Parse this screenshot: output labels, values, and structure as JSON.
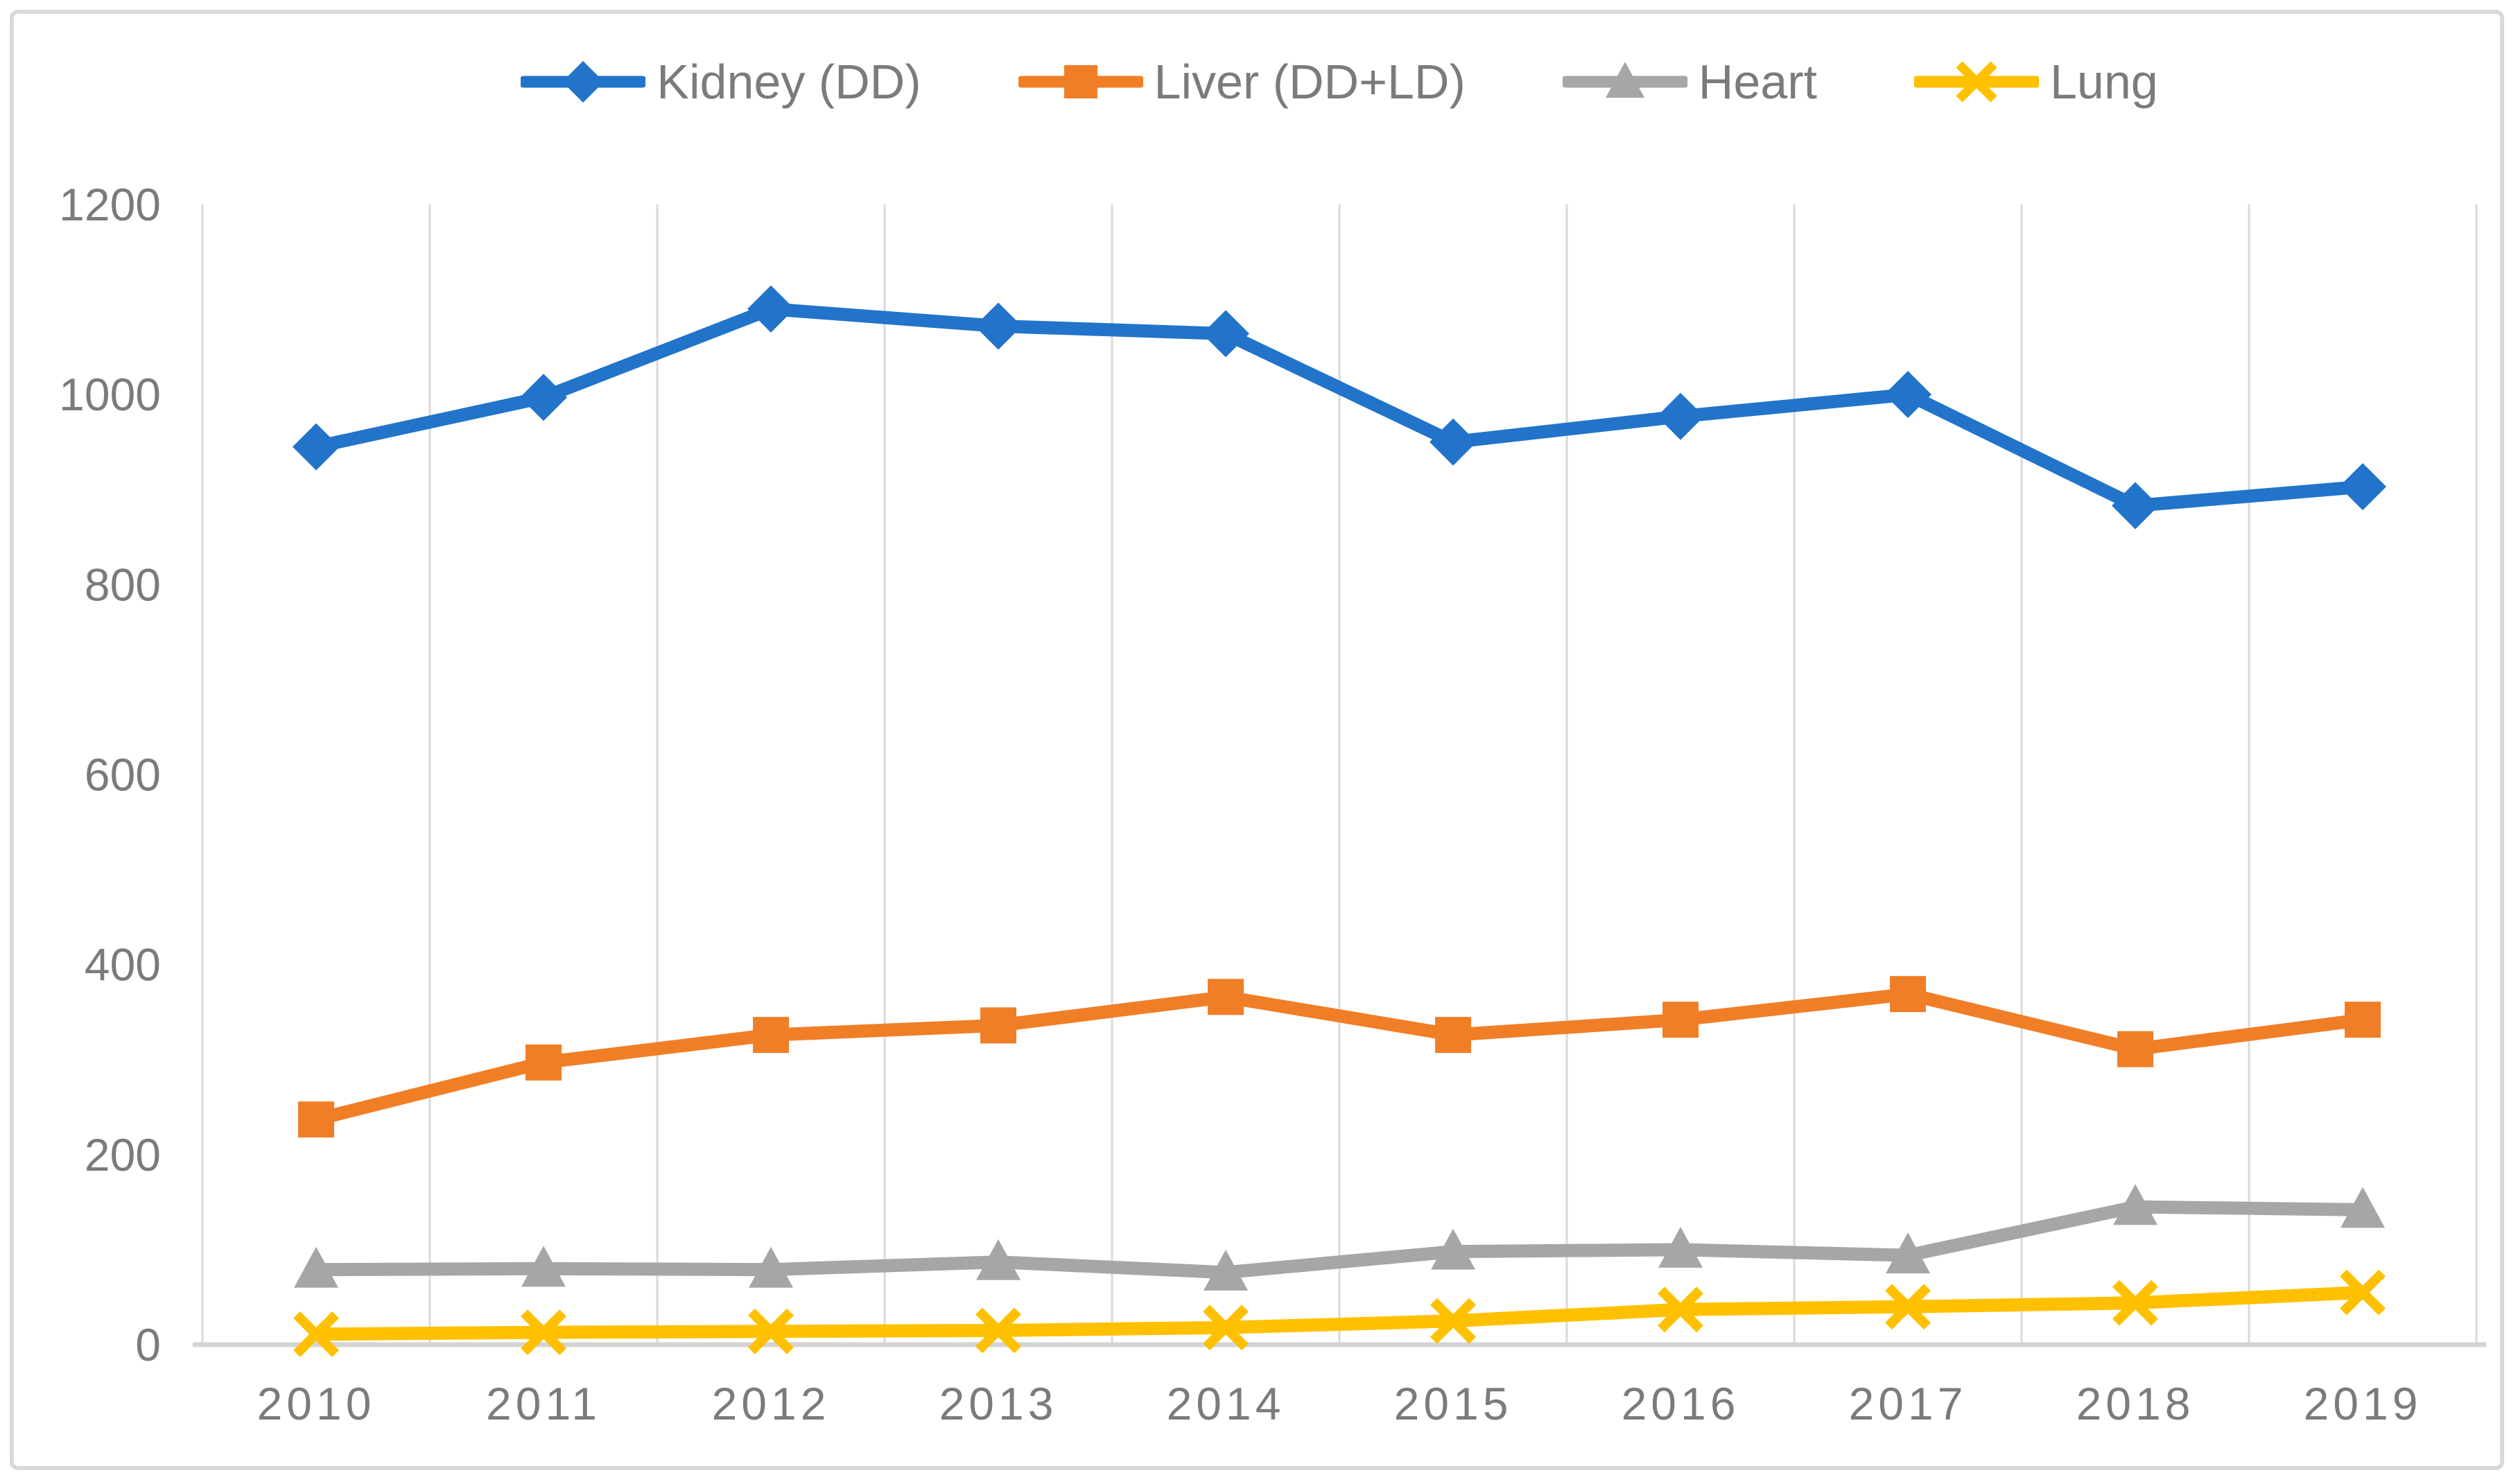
{
  "chart_data": {
    "type": "line",
    "title": "",
    "categories": [
      "2010",
      "2011",
      "2012",
      "2013",
      "2014",
      "2015",
      "2016",
      "2017",
      "2018",
      "2019"
    ],
    "series": [
      {
        "name": "Kidney (DD)",
        "marker": "diamond",
        "color": "#2174c9",
        "values": [
          945,
          997,
          1090,
          1072,
          1064,
          950,
          977,
          1000,
          883,
          903
        ]
      },
      {
        "name": "Liver (DD+LD)",
        "marker": "square",
        "color": "#f07e27",
        "values": [
          237,
          297,
          326,
          336,
          366,
          326,
          342,
          369,
          311,
          342
        ]
      },
      {
        "name": "Heart",
        "marker": "triangle",
        "color": "#a6a6a6",
        "values": [
          79,
          80,
          79,
          87,
          76,
          98,
          100,
          94,
          145,
          142
        ]
      },
      {
        "name": "Lung",
        "marker": "x",
        "color": "#ffc000",
        "values": [
          11,
          13,
          14,
          15,
          18,
          25,
          37,
          40,
          44,
          55
        ]
      }
    ],
    "xlabel": "",
    "ylabel": "",
    "ylim": [
      0,
      1200
    ],
    "yticks": [
      0,
      200,
      400,
      600,
      800,
      1000,
      1200
    ],
    "grid": "vertical-only",
    "legend_position": "top-center"
  },
  "style": {
    "grid_color": "#d9d9d9",
    "axis_line_color": "#d4d4d4",
    "tick_label_color": "#7b7b7b",
    "border_color": "#d9d9d9",
    "background": "#ffffff"
  }
}
